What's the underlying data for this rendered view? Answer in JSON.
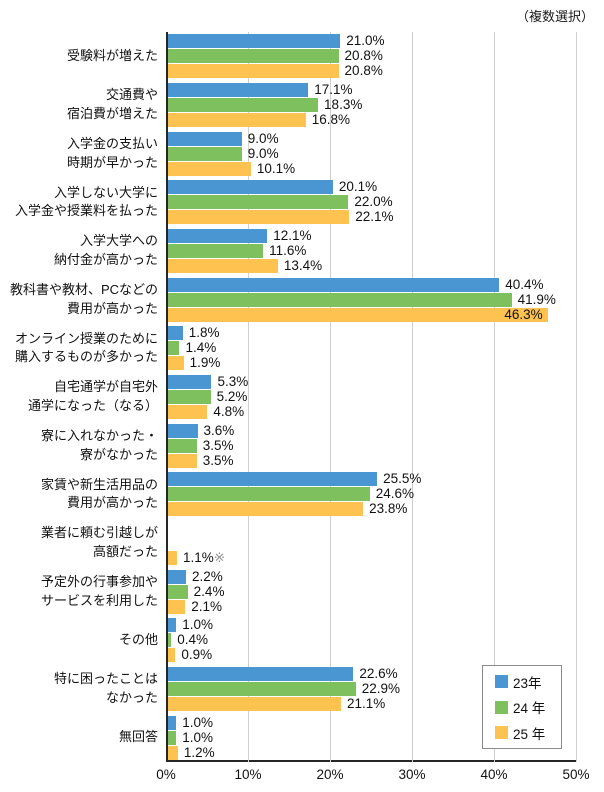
{
  "note": "（複数選択）",
  "chart_data": {
    "type": "bar",
    "orientation": "horizontal",
    "title": "",
    "xlabel": "",
    "ylabel": "",
    "xlim": [
      0,
      50
    ],
    "grid": true,
    "legend_position": "inside-bottom-right",
    "x_ticks": [
      {
        "value": 0,
        "label": "0%"
      },
      {
        "value": 10,
        "label": "10%"
      },
      {
        "value": 20,
        "label": "20%"
      },
      {
        "value": 30,
        "label": "30%"
      },
      {
        "value": 40,
        "label": "40%"
      },
      {
        "value": 50,
        "label": "50%"
      }
    ],
    "legend": [
      {
        "name": "23年",
        "color": "#4A96D2"
      },
      {
        "name": "24 年",
        "color": "#7EC05E"
      },
      {
        "name": "25 年",
        "color": "#FDC24F"
      }
    ],
    "groups": [
      {
        "label_lines": [
          "受験料が増えた"
        ],
        "values": [
          21.0,
          20.8,
          20.8
        ],
        "labels": [
          "21.0%",
          "20.8%",
          "20.8%"
        ]
      },
      {
        "label_lines": [
          "交通費や",
          "宿泊費が増えた"
        ],
        "values": [
          17.1,
          18.3,
          16.8
        ],
        "labels": [
          "17.1%",
          "18.3%",
          "16.8%"
        ]
      },
      {
        "label_lines": [
          "入学金の支払い",
          "時期が早かった"
        ],
        "values": [
          9.0,
          9.0,
          10.1
        ],
        "labels": [
          "9.0%",
          "9.0%",
          "10.1%"
        ]
      },
      {
        "label_lines": [
          "入学しない大学に",
          "入学金や授業料を払った"
        ],
        "values": [
          20.1,
          22.0,
          22.1
        ],
        "labels": [
          "20.1%",
          "22.0%",
          "22.1%"
        ]
      },
      {
        "label_lines": [
          "入学大学への",
          "納付金が高かった"
        ],
        "values": [
          12.1,
          11.6,
          13.4
        ],
        "labels": [
          "12.1%",
          "11.6%",
          "13.4%"
        ]
      },
      {
        "label_lines": [
          "教科書や教材、PCなどの",
          "費用が高かった"
        ],
        "values": [
          40.4,
          41.9,
          46.3
        ],
        "labels": [
          "40.4%",
          "41.9%",
          "46.3%"
        ]
      },
      {
        "label_lines": [
          "オンライン授業のために",
          "購入するものが多かった"
        ],
        "values": [
          1.8,
          1.4,
          1.9
        ],
        "labels": [
          "1.8%",
          "1.4%",
          "1.9%"
        ]
      },
      {
        "label_lines": [
          "自宅通学が自宅外",
          "通学になった（なる）"
        ],
        "values": [
          5.3,
          5.2,
          4.8
        ],
        "labels": [
          "5.3%",
          "5.2%",
          "4.8%"
        ]
      },
      {
        "label_lines": [
          "寮に入れなかった・",
          "寮がなかった"
        ],
        "values": [
          3.6,
          3.5,
          3.5
        ],
        "labels": [
          "3.6%",
          "3.5%",
          "3.5%"
        ]
      },
      {
        "label_lines": [
          "家賃や新生活用品の",
          "費用が高かった"
        ],
        "values": [
          25.5,
          24.6,
          23.8
        ],
        "labels": [
          "25.5%",
          "24.6%",
          "23.8%"
        ]
      },
      {
        "label_lines": [
          "業者に頼む引越しが",
          "高額だった"
        ],
        "values": [
          null,
          null,
          1.1
        ],
        "labels": [
          null,
          null,
          "1.1%"
        ],
        "suffixes": [
          null,
          null,
          "※"
        ]
      },
      {
        "label_lines": [
          "予定外の行事参加や",
          "サービスを利用した"
        ],
        "values": [
          2.2,
          2.4,
          2.1
        ],
        "labels": [
          "2.2%",
          "2.4%",
          "2.1%"
        ]
      },
      {
        "label_lines": [
          "その他"
        ],
        "values": [
          1.0,
          0.4,
          0.9
        ],
        "labels": [
          "1.0%",
          "0.4%",
          "0.9%"
        ]
      },
      {
        "label_lines": [
          "特に困ったことは",
          "なかった"
        ],
        "values": [
          22.6,
          22.9,
          21.1
        ],
        "labels": [
          "22.6%",
          "22.9%",
          "21.1%"
        ]
      },
      {
        "label_lines": [
          "無回答"
        ],
        "values": [
          1.0,
          1.0,
          1.2
        ],
        "labels": [
          "1.0%",
          "1.0%",
          "1.2%"
        ]
      }
    ]
  }
}
